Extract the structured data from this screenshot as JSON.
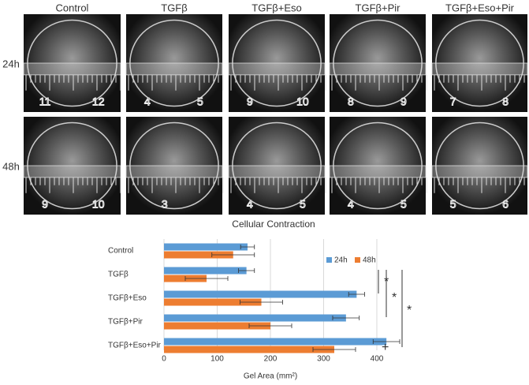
{
  "photos": {
    "columns": [
      "Control",
      "TGFβ",
      "TGFβ+Eso",
      "TGFβ+Pir",
      "TGFβ+Eso+Pir"
    ],
    "rows": [
      {
        "label": "24h",
        "cells": [
          [
            "11",
            "12"
          ],
          [
            "4",
            "5"
          ],
          [
            "9",
            "10"
          ],
          [
            "8",
            "9"
          ],
          [
            "7",
            "8"
          ]
        ]
      },
      {
        "label": "48h",
        "cells": [
          [
            "9",
            "10"
          ],
          [
            "3"
          ],
          [
            "4",
            "5"
          ],
          [
            "4",
            "5"
          ],
          [
            "5",
            "6"
          ]
        ]
      }
    ]
  },
  "chart_data": {
    "type": "bar",
    "orientation": "horizontal",
    "title": "Cellular Contraction",
    "x_label": "Gel Area (mm²)",
    "categories": [
      "Control",
      "TGFβ",
      "TGFβ+Eso",
      "TGFβ+Pir",
      "TGFβ+Eso+Pir"
    ],
    "series": [
      {
        "name": "24h",
        "color": "#5b9bd5",
        "values": [
          157,
          155,
          362,
          342,
          418
        ],
        "errors": [
          13,
          15,
          15,
          25,
          25
        ]
      },
      {
        "name": "48h",
        "color": "#ed7d31",
        "values": [
          130,
          80,
          183,
          200,
          320
        ],
        "errors": [
          40,
          40,
          40,
          40,
          40
        ]
      }
    ],
    "xlim": [
      0,
      450
    ],
    "xticks": [
      0,
      100,
      200,
      300,
      400
    ],
    "grid": true,
    "annotations": [
      "*",
      "*",
      "*",
      "+"
    ]
  }
}
